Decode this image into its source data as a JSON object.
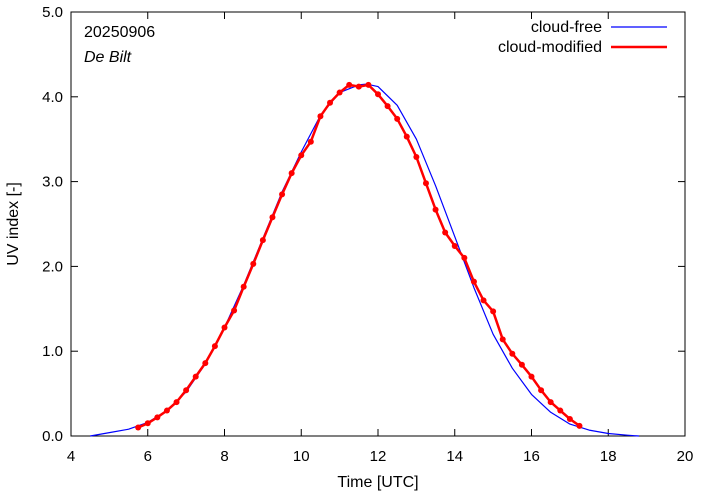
{
  "chart_data": {
    "type": "line",
    "xlabel": "Time  [UTC]",
    "ylabel": "UV index  [-]",
    "xlim": [
      4,
      20
    ],
    "ylim": [
      0,
      5
    ],
    "x_ticks": [
      "4",
      "6",
      "8",
      "10",
      "12",
      "14",
      "16",
      "18",
      "20"
    ],
    "y_ticks": [
      "0.0",
      "1.0",
      "2.0",
      "3.0",
      "4.0",
      "5.0"
    ],
    "annotations": {
      "date": "20250906",
      "location": "De Bilt"
    },
    "legend_position": "top-right",
    "colors": {
      "cloud_free": "#0000ff",
      "cloud_modified": "#ff0000"
    },
    "series": [
      {
        "name": "cloud-free",
        "style": "line",
        "x": [
          4.5,
          5.0,
          5.5,
          6.0,
          6.5,
          7.0,
          7.5,
          8.0,
          8.5,
          9.0,
          9.5,
          10.0,
          10.5,
          11.0,
          11.5,
          11.7,
          12.0,
          12.5,
          13.0,
          13.5,
          14.0,
          14.5,
          15.0,
          15.5,
          16.0,
          16.5,
          17.0,
          17.5,
          18.0,
          18.5,
          18.8
        ],
        "y": [
          0.0,
          0.04,
          0.08,
          0.16,
          0.3,
          0.52,
          0.85,
          1.28,
          1.78,
          2.33,
          2.88,
          3.35,
          3.78,
          4.05,
          4.14,
          4.15,
          4.12,
          3.9,
          3.5,
          2.95,
          2.35,
          1.75,
          1.2,
          0.8,
          0.49,
          0.28,
          0.14,
          0.07,
          0.03,
          0.01,
          0.0
        ]
      },
      {
        "name": "cloud-modified",
        "style": "line-points",
        "x": [
          5.75,
          6.0,
          6.25,
          6.5,
          6.75,
          7.0,
          7.25,
          7.5,
          7.75,
          8.0,
          8.25,
          8.5,
          8.75,
          9.0,
          9.25,
          9.5,
          9.75,
          10.0,
          10.25,
          10.5,
          10.75,
          11.0,
          11.25,
          11.5,
          11.75,
          12.0,
          12.25,
          12.5,
          12.75,
          13.0,
          13.25,
          13.5,
          13.75,
          14.0,
          14.25,
          14.5,
          14.75,
          15.0,
          15.25,
          15.5,
          15.75,
          16.0,
          16.25,
          16.5,
          16.75,
          17.0,
          17.25
        ],
        "y": [
          0.1,
          0.15,
          0.22,
          0.3,
          0.4,
          0.54,
          0.7,
          0.86,
          1.06,
          1.28,
          1.48,
          1.76,
          2.03,
          2.31,
          2.58,
          2.85,
          3.1,
          3.31,
          3.47,
          3.77,
          3.93,
          4.05,
          4.14,
          4.12,
          4.14,
          4.03,
          3.89,
          3.74,
          3.53,
          3.29,
          2.98,
          2.67,
          2.4,
          2.24,
          2.1,
          1.82,
          1.6,
          1.47,
          1.14,
          0.97,
          0.84,
          0.7,
          0.54,
          0.4,
          0.3,
          0.2,
          0.12
        ]
      }
    ]
  }
}
